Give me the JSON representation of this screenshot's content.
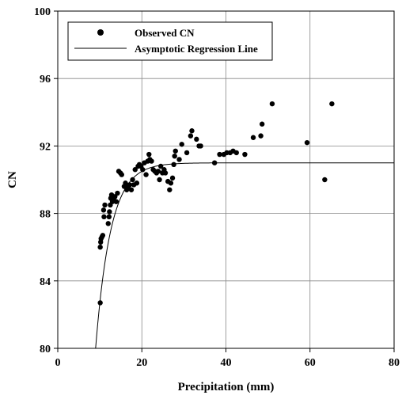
{
  "chart_data": {
    "type": "scatter",
    "title": "",
    "xlabel": "Precipitation (mm)",
    "ylabel": "CN",
    "xlim": [
      0,
      80
    ],
    "ylim": [
      80,
      100
    ],
    "x_ticks": [
      0,
      20,
      40,
      60,
      80
    ],
    "y_ticks": [
      80,
      84,
      88,
      92,
      96,
      100
    ],
    "grid": true,
    "legend_position": "top-left",
    "series": [
      {
        "name": "Observed CN",
        "kind": "scatter",
        "color": "#000000",
        "points": [
          [
            10.1,
            82.7
          ],
          [
            10.1,
            86.0
          ],
          [
            10.2,
            86.3
          ],
          [
            10.3,
            86.5
          ],
          [
            10.5,
            86.6
          ],
          [
            10.7,
            86.7
          ],
          [
            10.9,
            88.2
          ],
          [
            11.2,
            88.5
          ],
          [
            11.0,
            87.8
          ],
          [
            12.0,
            87.4
          ],
          [
            12.2,
            87.8
          ],
          [
            12.3,
            88.1
          ],
          [
            12.5,
            88.5
          ],
          [
            12.6,
            88.9
          ],
          [
            12.8,
            89.1
          ],
          [
            13.0,
            88.7
          ],
          [
            13.3,
            88.9
          ],
          [
            13.6,
            89.0
          ],
          [
            13.9,
            88.7
          ],
          [
            14.2,
            89.2
          ],
          [
            14.5,
            90.5
          ],
          [
            14.9,
            90.4
          ],
          [
            15.2,
            90.3
          ],
          [
            15.8,
            89.6
          ],
          [
            16.1,
            89.8
          ],
          [
            16.4,
            89.4
          ],
          [
            16.8,
            89.6
          ],
          [
            17.1,
            89.7
          ],
          [
            17.5,
            89.4
          ],
          [
            17.8,
            90.0
          ],
          [
            18.1,
            89.7
          ],
          [
            18.4,
            90.6
          ],
          [
            18.8,
            89.8
          ],
          [
            19.1,
            90.8
          ],
          [
            19.4,
            90.9
          ],
          [
            19.8,
            90.8
          ],
          [
            20.2,
            90.6
          ],
          [
            20.6,
            91.0
          ],
          [
            21.0,
            90.3
          ],
          [
            21.4,
            91.1
          ],
          [
            21.9,
            91.2
          ],
          [
            21.7,
            91.5
          ],
          [
            22.3,
            91.1
          ],
          [
            22.7,
            90.6
          ],
          [
            23.1,
            90.5
          ],
          [
            23.5,
            90.4
          ],
          [
            23.9,
            90.5
          ],
          [
            24.2,
            90.0
          ],
          [
            24.5,
            90.8
          ],
          [
            24.9,
            90.4
          ],
          [
            25.3,
            90.6
          ],
          [
            25.6,
            90.4
          ],
          [
            26.2,
            89.9
          ],
          [
            26.6,
            89.4
          ],
          [
            26.9,
            89.8
          ],
          [
            27.3,
            90.1
          ],
          [
            27.6,
            90.9
          ],
          [
            27.8,
            91.4
          ],
          [
            28.0,
            91.7
          ],
          [
            28.9,
            91.2
          ],
          [
            29.5,
            92.1
          ],
          [
            30.7,
            91.6
          ],
          [
            31.6,
            92.6
          ],
          [
            31.9,
            92.9
          ],
          [
            33.0,
            92.4
          ],
          [
            33.6,
            92.0
          ],
          [
            34.0,
            92.0
          ],
          [
            37.3,
            91.0
          ],
          [
            38.5,
            91.5
          ],
          [
            39.5,
            91.5
          ],
          [
            40.2,
            91.6
          ],
          [
            41.0,
            91.6
          ],
          [
            41.7,
            91.7
          ],
          [
            42.5,
            91.6
          ],
          [
            44.5,
            91.5
          ],
          [
            46.5,
            92.5
          ],
          [
            48.3,
            92.6
          ],
          [
            48.6,
            93.3
          ],
          [
            51.0,
            94.5
          ],
          [
            59.3,
            92.2
          ],
          [
            63.5,
            90.0
          ],
          [
            65.2,
            94.5
          ]
        ]
      },
      {
        "name": "Asymptotic Regression Line",
        "kind": "line",
        "color": "#000000",
        "asymptote": 91.0,
        "x_start": 9.0,
        "y_start": 80.0,
        "decay_rate": 0.28
      }
    ]
  }
}
